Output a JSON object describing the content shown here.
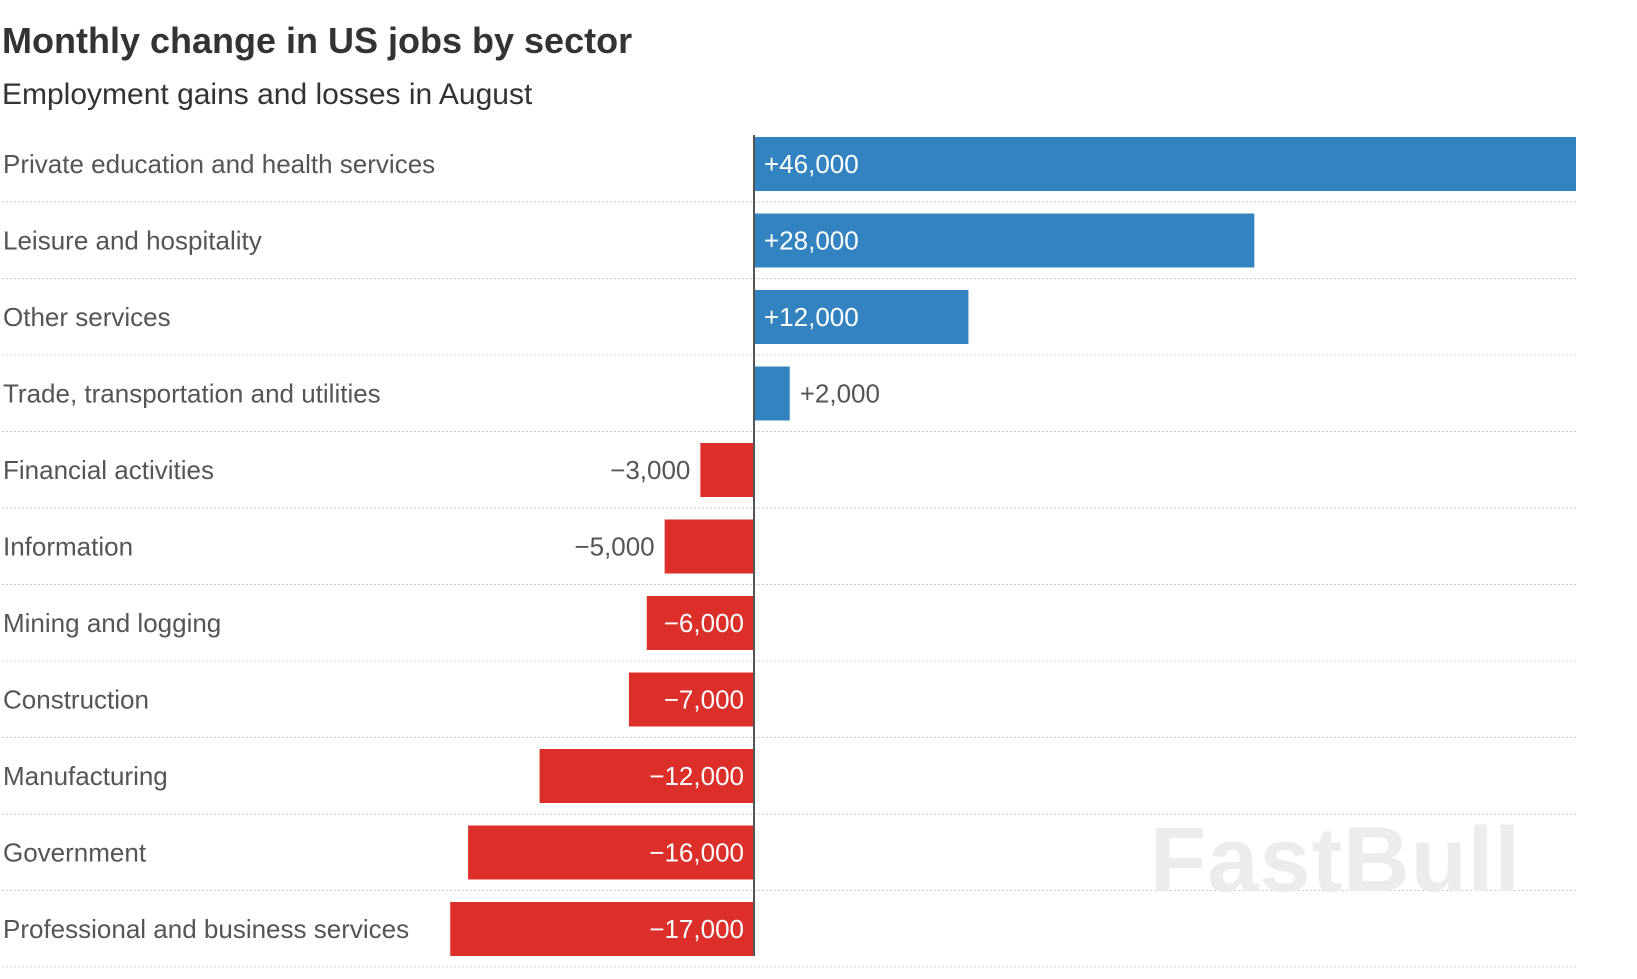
{
  "header": {
    "title": "Monthly change in US jobs by sector",
    "subtitle": "Employment gains and losses in August"
  },
  "watermark": "FastBull",
  "colors": {
    "positive": "#3383c0",
    "negative": "#dc2f2a",
    "text": "#555555",
    "gridline": "#cccccc",
    "axis": "#555555"
  },
  "chart_data": {
    "type": "bar",
    "orientation": "horizontal",
    "title": "Monthly change in US jobs by sector",
    "subtitle": "Employment gains and losses in August",
    "categories": [
      "Private education and health services",
      "Leisure and hospitality",
      "Other services",
      "Trade, transportation and utilities",
      "Financial activities",
      "Information",
      "Mining and logging",
      "Construction",
      "Manufacturing",
      "Government",
      "Professional and business services"
    ],
    "values": [
      46000,
      28000,
      12000,
      2000,
      -3000,
      -5000,
      -6000,
      -7000,
      -12000,
      -16000,
      -17000
    ],
    "data_labels": [
      "+46,000",
      "+28,000",
      "+12,000",
      "+2,000",
      "−3,000",
      "−5,000",
      "−6,000",
      "−7,000",
      "−12,000",
      "−16,000",
      "−17,000"
    ],
    "xlim": [
      -42000,
      46000
    ],
    "grid": false,
    "legend": "none"
  }
}
